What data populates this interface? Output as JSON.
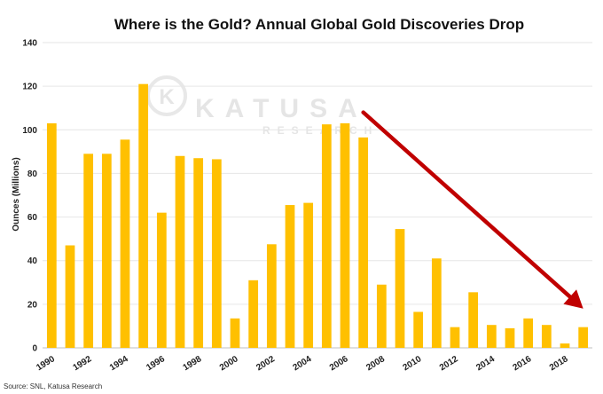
{
  "chart_data": {
    "type": "bar",
    "title": "Where is the Gold? Annual Global Gold Discoveries Drop",
    "ylabel": "Ounces (Millions)",
    "xlabel": "",
    "ylim": [
      0,
      140
    ],
    "yticks": [
      0,
      20,
      40,
      60,
      80,
      100,
      120,
      140
    ],
    "grid": true,
    "categories": [
      "1990",
      "1991",
      "1992",
      "1993",
      "1994",
      "1995",
      "1996",
      "1997",
      "1998",
      "1999",
      "2000",
      "2001",
      "2002",
      "2003",
      "2004",
      "2005",
      "2006",
      "2007",
      "2008",
      "2009",
      "2010",
      "2011",
      "2012",
      "2013",
      "2014",
      "2015",
      "2016",
      "2017",
      "2018",
      "2019"
    ],
    "tick_labels": [
      "1990",
      "",
      "1992",
      "",
      "1994",
      "",
      "1996",
      "",
      "1998",
      "",
      "2000",
      "",
      "2002",
      "",
      "2004",
      "",
      "2006",
      "",
      "2008",
      "",
      "2010",
      "",
      "2012",
      "",
      "2014",
      "",
      "2016",
      "",
      "2018",
      ""
    ],
    "values": [
      103,
      47,
      89,
      89,
      95.5,
      121,
      62,
      88,
      87,
      86.5,
      13.5,
      31,
      47.5,
      65.5,
      66.5,
      102.5,
      103,
      96.5,
      29,
      54.5,
      16.5,
      41,
      9.5,
      25.5,
      10.5,
      9,
      13.5,
      10.5,
      2,
      9.5
    ],
    "bar_color": "#ffc000",
    "arrow_color": "#c00000",
    "trend_arrow": {
      "from": {
        "x": "2007",
        "y": 108
      },
      "to": {
        "x": "2019",
        "y": 18
      }
    },
    "watermark": {
      "main": "KATUSA",
      "sub": "RESEARCH",
      "logo_letter": "K"
    },
    "source": "Source: SNL, Katusa Research"
  }
}
